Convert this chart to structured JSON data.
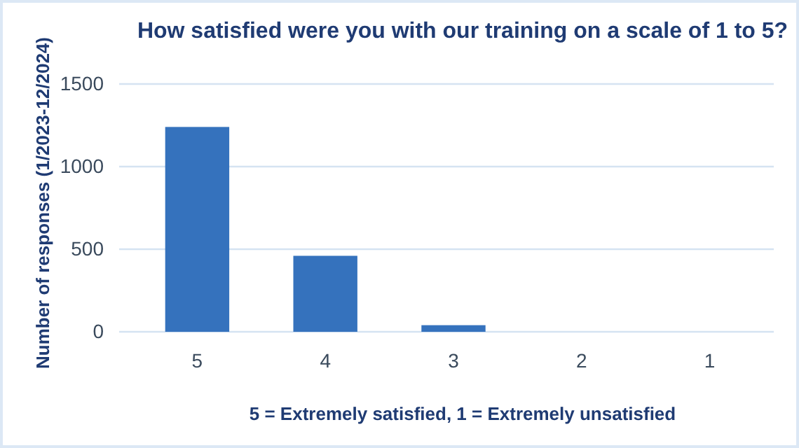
{
  "chart_data": {
    "type": "bar",
    "title": "How satisfied were you with our training on a scale of 1 to 5?",
    "xlabel": "5 = Extremely satisfied, 1 = Extremely unsatisfied",
    "ylabel": "Number of responses  (1/2023-12/2024)",
    "categories": [
      "5",
      "4",
      "3",
      "2",
      "1"
    ],
    "values": [
      1240,
      460,
      40,
      0,
      0
    ],
    "color": "#3572bd",
    "ylim": [
      0,
      1500
    ],
    "yticks": [
      0,
      500,
      1000,
      1500
    ],
    "grid": "y"
  }
}
